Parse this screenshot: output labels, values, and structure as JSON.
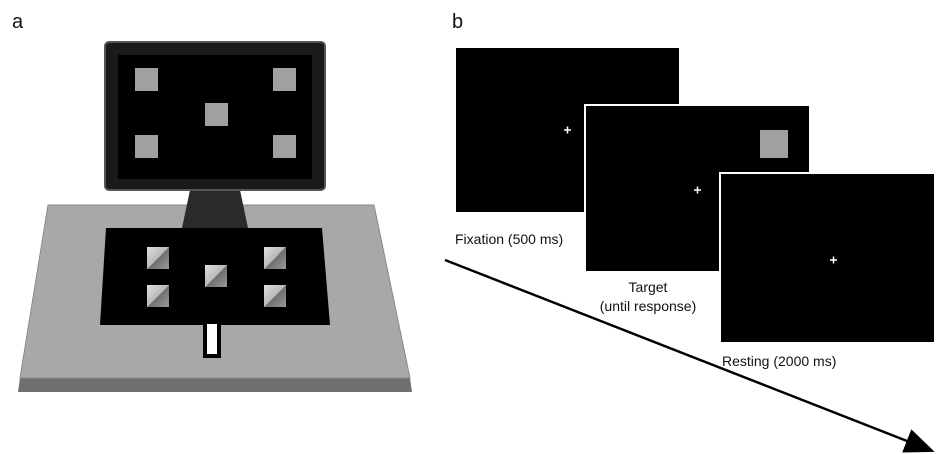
{
  "panel_a": {
    "label": "a"
  },
  "panel_b": {
    "label": "b",
    "frames": [
      {
        "caption": [
          "Fixation (500 ms)"
        ]
      },
      {
        "caption": [
          "Target",
          "(until response)"
        ]
      },
      {
        "caption": [
          "Resting (2000 ms)"
        ]
      }
    ]
  }
}
